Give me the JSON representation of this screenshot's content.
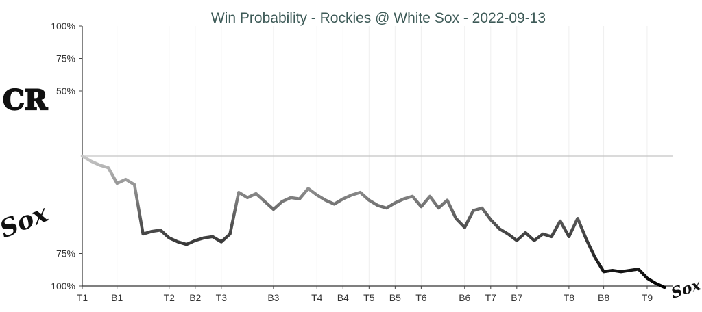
{
  "chart_data": {
    "type": "line",
    "title": "Win Probability - Rockies @ White Sox - 2022-09-13",
    "y_ticks": [
      {
        "value": 100,
        "label": "100%"
      },
      {
        "value": 75,
        "label": "75%"
      },
      {
        "value": 50,
        "label": "50%"
      },
      {
        "value": -75,
        "label": "75%"
      },
      {
        "value": -100,
        "label": "100%"
      }
    ],
    "ylim": [
      -100,
      100
    ],
    "xlim": [
      0,
      68
    ],
    "x_ticks": [
      {
        "x": 0,
        "label": "T1"
      },
      {
        "x": 4,
        "label": "B1"
      },
      {
        "x": 10,
        "label": "T2"
      },
      {
        "x": 13,
        "label": "B2"
      },
      {
        "x": 16,
        "label": "T3"
      },
      {
        "x": 22,
        "label": "B3"
      },
      {
        "x": 27,
        "label": "T4"
      },
      {
        "x": 30,
        "label": "B4"
      },
      {
        "x": 33,
        "label": "T5"
      },
      {
        "x": 36,
        "label": "B5"
      },
      {
        "x": 39,
        "label": "T6"
      },
      {
        "x": 44,
        "label": "B6"
      },
      {
        "x": 47,
        "label": "T7"
      },
      {
        "x": 50,
        "label": "B7"
      },
      {
        "x": 56,
        "label": "T8"
      },
      {
        "x": 60,
        "label": "B8"
      },
      {
        "x": 65,
        "label": "T9"
      }
    ],
    "grid": true,
    "series": [
      {
        "values": [
          0,
          -4,
          -7,
          -9,
          -21,
          -18,
          -22,
          -60,
          -58,
          -57,
          -63,
          -66,
          -68,
          -65,
          -63,
          -62,
          -66,
          -60,
          -28,
          -32,
          -29,
          -35,
          -41,
          -35,
          -32,
          -33,
          -25,
          -30,
          -34,
          -37,
          -33,
          -30,
          -28,
          -34,
          -38,
          -40,
          -36,
          -33,
          -31,
          -39,
          -31,
          -40,
          -34,
          -48,
          -55,
          -42,
          -40,
          -49,
          -56,
          -60,
          -65,
          -59,
          -65,
          -60,
          -62,
          -50,
          -62,
          -48,
          -64,
          -78,
          -89,
          -88,
          -89,
          -88,
          -87,
          -94,
          -98,
          -101
        ]
      }
    ]
  },
  "logos": {
    "top_team": "CR",
    "bottom_team": "Sox"
  }
}
